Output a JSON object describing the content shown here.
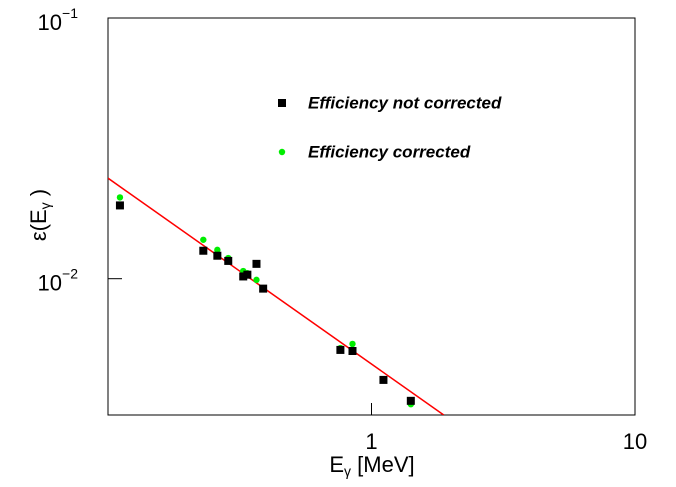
{
  "chart_data": {
    "type": "scatter",
    "xlabel": {
      "main": "E",
      "sub": "γ",
      "rest": " [MeV]"
    },
    "ylabel": {
      "main": "ε(E",
      "sub": "γ",
      "rest": " )"
    },
    "xlog": true,
    "ylog": true,
    "xlim": [
      0.1,
      10
    ],
    "ylim": [
      0.003,
      0.1
    ],
    "xticks": [
      1,
      10
    ],
    "yticks": [
      {
        "value": 0.1,
        "label": "10",
        "exponent": "−1"
      },
      {
        "value": 0.01,
        "label": "10",
        "exponent": "−2"
      }
    ],
    "legend": "top-right",
    "series": [
      {
        "name": "Efficiency corrected",
        "color": "#00ee00",
        "marker": "circle",
        "x": [
          0.111,
          0.23,
          0.26,
          0.286,
          0.326,
          0.338,
          0.366,
          0.388,
          0.762,
          0.847,
          1.11,
          1.41
        ],
        "values": [
          0.0205,
          0.0141,
          0.0129,
          0.012,
          0.0107,
          0.0105,
          0.0099,
          0.0092,
          0.00542,
          0.00562,
          0.00409,
          0.0033
        ]
      },
      {
        "name": "Efficiency not corrected",
        "color": "#000000",
        "marker": "square",
        "x": [
          0.111,
          0.23,
          0.26,
          0.286,
          0.326,
          0.338,
          0.366,
          0.388,
          0.762,
          0.847,
          1.11,
          1.41
        ],
        "values": [
          0.0191,
          0.0128,
          0.01225,
          0.0117,
          0.0102,
          0.01036,
          0.0114,
          0.00916,
          0.00533,
          0.00528,
          0.00409,
          0.0034
        ]
      }
    ],
    "fit": {
      "color": "#ff0000",
      "x": [
        0.1,
        1.88
      ],
      "values": [
        0.0243,
        0.003
      ]
    }
  }
}
